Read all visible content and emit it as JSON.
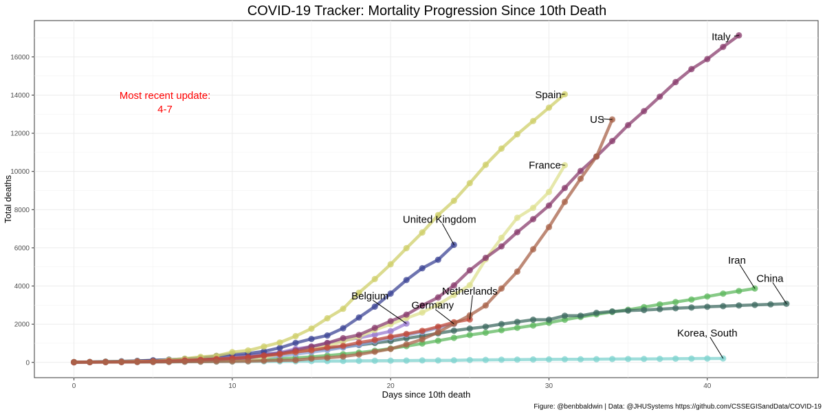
{
  "chart_data": {
    "type": "line",
    "title": "COVID-19 Tracker: Mortality Progression Since 10th Death",
    "xlabel": "Days since 10th death",
    "ylabel": "Total deaths",
    "xlim": [
      -2.5,
      47
    ],
    "ylim": [
      -800,
      17900
    ],
    "x_ticks": [
      0,
      10,
      20,
      30,
      40
    ],
    "y_ticks": [
      0,
      2000,
      4000,
      6000,
      8000,
      10000,
      12000,
      14000,
      16000
    ],
    "annotation": {
      "line1": "Most recent update:",
      "line2": "4-7"
    },
    "caption": "Figure: @benbbaldwin | Data: @JHUSystems https://github.com/CSSEGISandData/COVID-19",
    "series": [
      {
        "name": "Korea, South",
        "color": "#7fd3cf",
        "values": [
          12,
          13,
          16,
          17,
          21,
          24,
          28,
          32,
          35,
          42,
          44,
          50,
          51,
          54,
          60,
          66,
          67,
          75,
          81,
          84,
          91,
          94,
          102,
          104,
          111,
          126,
          131,
          139,
          144,
          152,
          158,
          162,
          165,
          169,
          174,
          177,
          183,
          186,
          192,
          200,
          204,
          208
        ]
      },
      {
        "name": "Iran",
        "color": "#5fb85f",
        "values": [
          12,
          16,
          19,
          26,
          34,
          43,
          54,
          66,
          77,
          92,
          107,
          124,
          145,
          194,
          237,
          291,
          354,
          429,
          514,
          611,
          724,
          853,
          988,
          1135,
          1284,
          1433,
          1556,
          1685,
          1812,
          1934,
          2077,
          2234,
          2378,
          2517,
          2640,
          2757,
          2898,
          3036,
          3160,
          3294,
          3452,
          3603,
          3739,
          3872
        ]
      },
      {
        "name": "China",
        "color": "#3f6b62",
        "values": [
          17,
          25,
          41,
          56,
          80,
          106,
          132,
          170,
          213,
          259,
          304,
          361,
          425,
          490,
          563,
          636,
          722,
          811,
          908,
          1016,
          1113,
          1259,
          1380,
          1523,
          1665,
          1770,
          1868,
          2004,
          2118,
          2236,
          2236,
          2442,
          2445,
          2595,
          2665,
          2715,
          2744,
          2788,
          2835,
          2870,
          2912,
          2943,
          2981,
          3012,
          3042,
          3070
        ]
      },
      {
        "name": "Belgium",
        "color": "#9a7bd0",
        "values": [
          10,
          14,
          21,
          37,
          67,
          75,
          88,
          122,
          178,
          220,
          289,
          353,
          431,
          513,
          705,
          828,
          1011,
          1143,
          1283,
          1447,
          1632,
          2035
        ]
      },
      {
        "name": "Germany",
        "color": "#8da3d9",
        "values": [
          11,
          13,
          17,
          24,
          28,
          44,
          67,
          84,
          94,
          123,
          157,
          206,
          267,
          342,
          433,
          533,
          645,
          775,
          920,
          1107,
          1275,
          1444,
          1584,
          1810,
          2016
        ]
      },
      {
        "name": "United Kingdom",
        "color": "#3d4596",
        "values": [
          10,
          21,
          35,
          55,
          71,
          103,
          144,
          177,
          233,
          335,
          422,
          465,
          578,
          759,
          1019,
          1228,
          1408,
          1789,
          2352,
          2921,
          3605,
          4313,
          4934,
          5373,
          6159
        ]
      },
      {
        "name": "Spain",
        "color": "#cfcf6a",
        "values": [
          10,
          17,
          28,
          35,
          54,
          55,
          133,
          195,
          289,
          342,
          533,
          623,
          830,
          1043,
          1375,
          1772,
          2311,
          2808,
          3647,
          4365,
          5138,
          5982,
          6803,
          7716,
          8464,
          9387,
          10348,
          11198,
          11947,
          12641,
          13341,
          14045
        ]
      },
      {
        "name": "France",
        "color": "#dde08f",
        "values": [
          11,
          19,
          19,
          33,
          48,
          48,
          79,
          91,
          91,
          149,
          149,
          149,
          244,
          451,
          563,
          676,
          862,
          1102,
          1333,
          1698,
          1997,
          2317,
          2611,
          3030,
          3532,
          4043,
          5398,
          6520,
          7574,
          8093,
          8926,
          10328
        ]
      },
      {
        "name": "Italy",
        "color": "#8a3d6e",
        "values": [
          10,
          12,
          17,
          21,
          29,
          34,
          52,
          79,
          107,
          148,
          197,
          233,
          366,
          463,
          631,
          827,
          1016,
          1266,
          1441,
          1809,
          2158,
          2503,
          2978,
          3405,
          4032,
          4825,
          5476,
          6077,
          6820,
          7503,
          8215,
          9134,
          10023,
          10779,
          11591,
          12428,
          13155,
          13915,
          14681,
          15362,
          15887,
          16523,
          17127
        ]
      },
      {
        "name": "Netherlands",
        "color": "#c14a3a",
        "values": [
          10,
          12,
          20,
          24,
          43,
          58,
          76,
          106,
          136,
          179,
          213,
          276,
          356,
          434,
          546,
          639,
          771,
          864,
          1039,
          1173,
          1339,
          1487,
          1651,
          1867,
          2101,
          2248
        ]
      },
      {
        "name": "US",
        "color": "#a8634a",
        "values": [
          11,
          12,
          14,
          17,
          21,
          22,
          28,
          36,
          40,
          47,
          54,
          63,
          85,
          108,
          118,
          200,
          244,
          307,
          417,
          557,
          706,
          942,
          1209,
          1581,
          2026,
          2467,
          2978,
          3873,
          4757,
          5926,
          7087,
          8407,
          9619,
          10783,
          12722
        ]
      }
    ]
  }
}
